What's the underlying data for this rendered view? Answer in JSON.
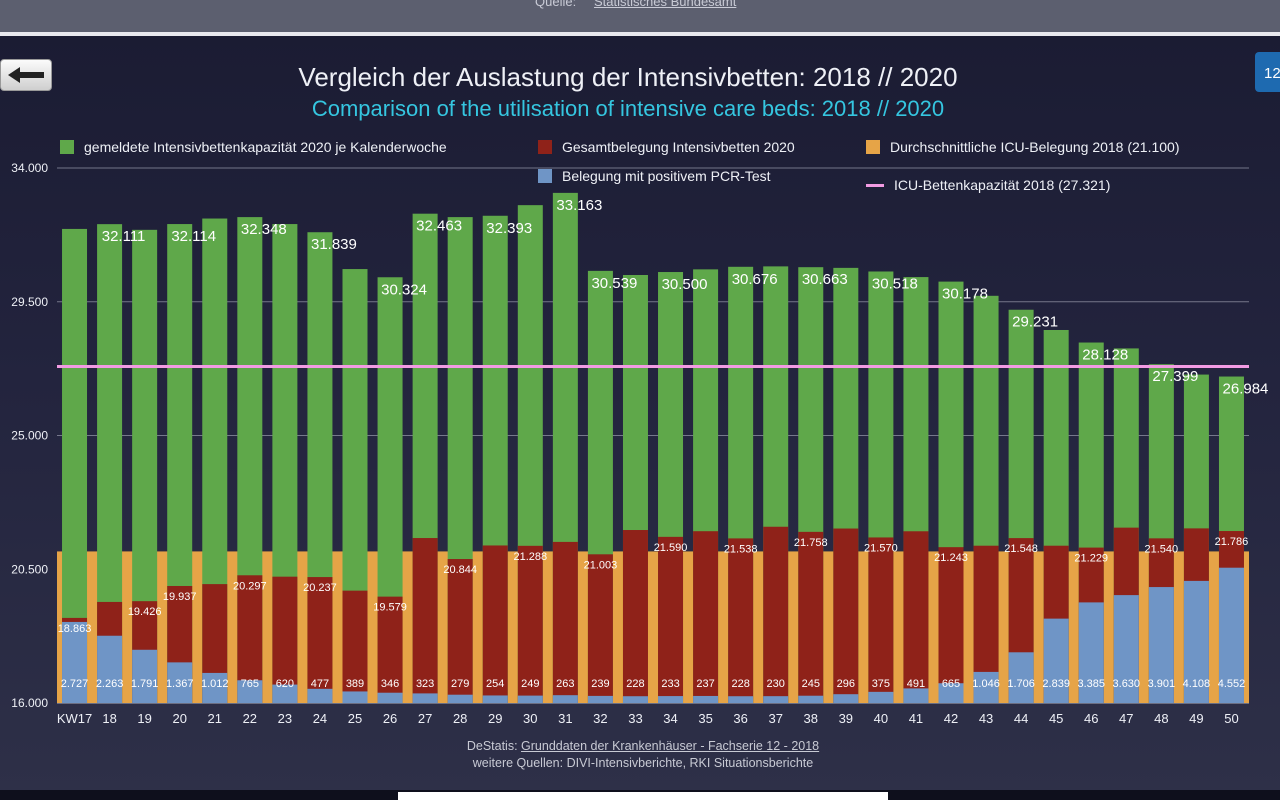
{
  "top_caption": {
    "label": "Quelle:",
    "link": "Statistisches Bundesamt"
  },
  "slide_number": "12",
  "chart_data": {
    "type": "bar",
    "title": "Vergleich der Auslastung der Intensivbetten: 2018 // 2020",
    "subtitle": "Comparison of the utilisation of intensive care beds: 2018 // 2020",
    "ylim": [
      16000,
      34000
    ],
    "yticks": [
      16000,
      20500,
      25000,
      29500,
      34000
    ],
    "ytick_labels": [
      "16.000",
      "20.500",
      "25.000",
      "29.500",
      "34.000"
    ],
    "categories": [
      "KW17",
      "18",
      "19",
      "20",
      "21",
      "22",
      "23",
      "24",
      "25",
      "26",
      "27",
      "28",
      "29",
      "30",
      "31",
      "32",
      "33",
      "34",
      "35",
      "36",
      "37",
      "38",
      "39",
      "40",
      "41",
      "42",
      "43",
      "44",
      "45",
      "46",
      "47",
      "48",
      "49",
      "50"
    ],
    "series": [
      {
        "name": "gemeldete Intensivbettenkapazität 2020 je Kalenderwoche",
        "color": "#5fa84a",
        "values": [
          31950,
          32111,
          31920,
          32114,
          32300,
          32348,
          32114,
          31839,
          30600,
          30324,
          32463,
          32348,
          32393,
          32750,
          33163,
          30539,
          30400,
          30500,
          30590,
          30676,
          30690,
          30663,
          30640,
          30518,
          30330,
          30178,
          29700,
          29231,
          28550,
          28128,
          27930,
          27399,
          27050,
          26984
        ],
        "labels_shown": [
          "",
          "32.111",
          "",
          "32.114",
          "",
          "32.348",
          "",
          "31.839",
          "",
          "30.324",
          "32.463",
          "",
          "32.393",
          "",
          "33.163",
          "30.539",
          "",
          "30.500",
          "",
          "30.676",
          "",
          "30.663",
          "",
          "30.518",
          "",
          "30.178",
          "",
          "29.231",
          "",
          "28.128",
          "",
          "27.399",
          "",
          "26.984"
        ]
      },
      {
        "name": "Gesamtbelegung Intensivbetten 2020",
        "color": "#8f2219",
        "values": [
          18863,
          19400,
          19426,
          19937,
          20000,
          20297,
          20250,
          20237,
          19780,
          19579,
          21550,
          20844,
          21300,
          21288,
          21420,
          21003,
          21820,
          21590,
          21780,
          21538,
          21930,
          21758,
          21870,
          21570,
          21778,
          21243,
          21292,
          21548,
          21292,
          21229,
          21900,
          21540,
          21875,
          21786
        ],
        "labels": [
          "18.863",
          "",
          "19.426",
          "19.937",
          "",
          "20.297",
          "",
          "20.237",
          "",
          "19.579",
          "",
          "20.844",
          "",
          "21.288",
          "",
          "21.003",
          "",
          "21.590",
          "",
          "21.538",
          "",
          "21.758",
          "",
          "21.570",
          "",
          "21.243",
          "",
          "21.548",
          "",
          "21.229",
          "",
          "21.540",
          "",
          "21.786"
        ]
      },
      {
        "name": "Belegung mit positivem PCR-Test",
        "color": "#6f95c6",
        "values": [
          2727,
          2263,
          1791,
          1367,
          1012,
          765,
          620,
          477,
          389,
          346,
          323,
          279,
          254,
          249,
          263,
          239,
          228,
          233,
          237,
          228,
          230,
          245,
          296,
          375,
          491,
          665,
          1046,
          1706,
          2839,
          3385,
          3630,
          3901,
          4108,
          4552
        ],
        "labels": [
          "2.727",
          "2.263",
          "1.791",
          "1.367",
          "1.012",
          "765",
          "620",
          "477",
          "389",
          "346",
          "323",
          "279",
          "254",
          "249",
          "263",
          "239",
          "228",
          "233",
          "237",
          "228",
          "230",
          "245",
          "296",
          "375",
          "491",
          "665",
          "1.046",
          "1.706",
          "2.839",
          "3.385",
          "3.630",
          "3.901",
          "4.108",
          "4.552"
        ]
      },
      {
        "name": "Durchschnittliche ICU-Belegung 2018 (21.100)",
        "color": "#e6a447",
        "value": 21100
      },
      {
        "name": "ICU-Bettenkapazität 2018 (27.321)",
        "color": "#f29be3",
        "value": 27321,
        "kind": "line"
      }
    ]
  },
  "source": {
    "prefix": "DeStatis: ",
    "link": "Grunddaten der Krankenhäuser - Fachserie 12 - 2018",
    "line2": "weitere Quellen: DIVI-Intensivberichte, RKI Situationsberichte"
  }
}
